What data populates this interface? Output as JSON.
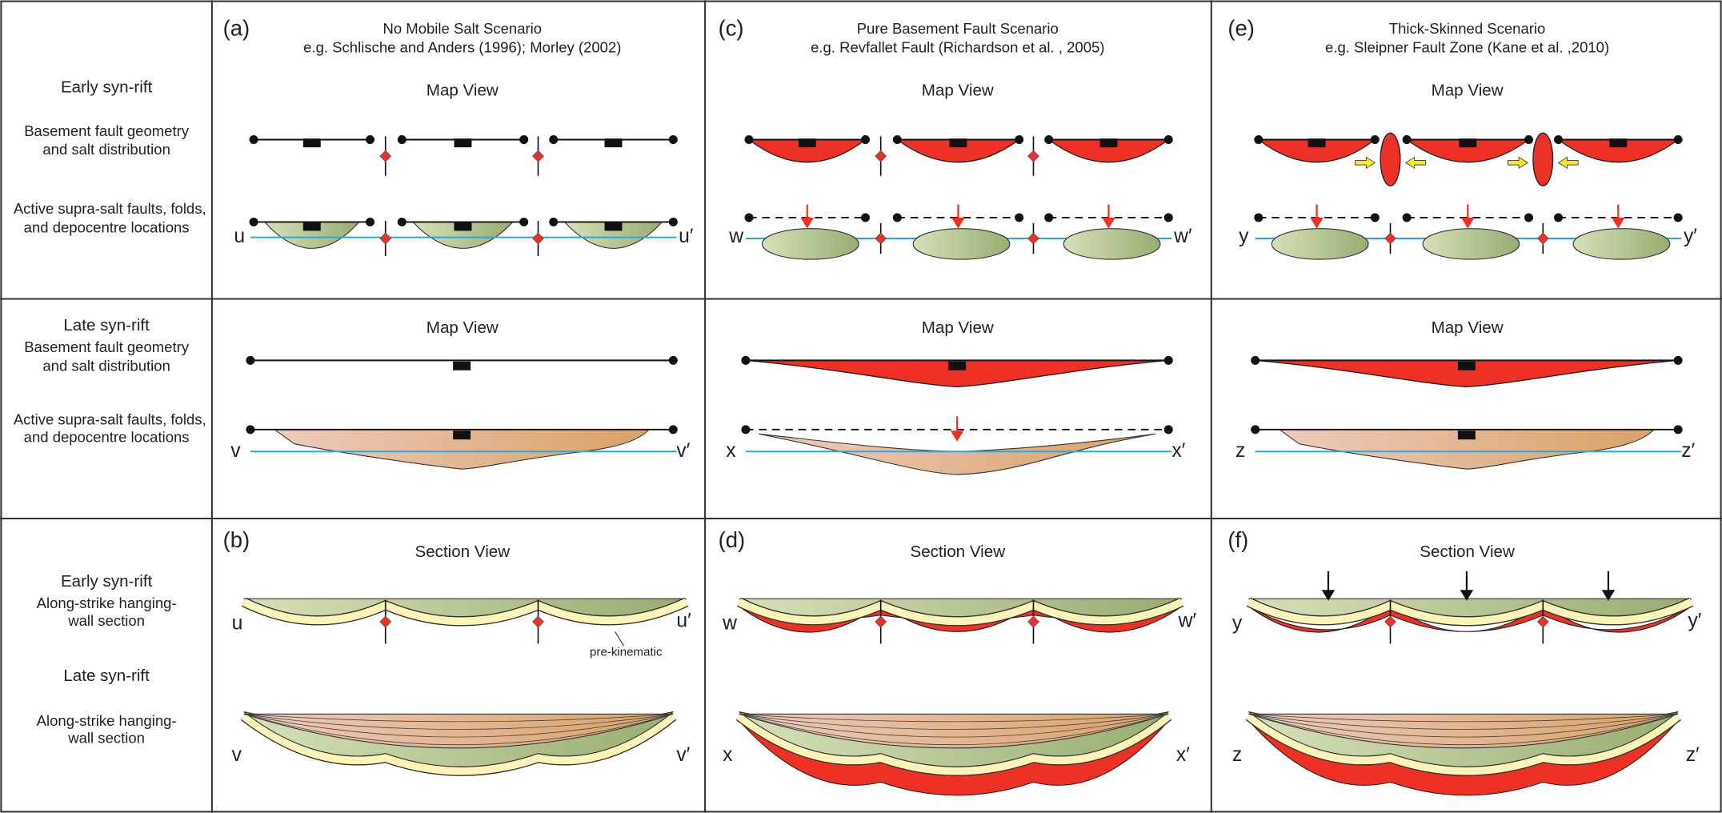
{
  "row_labels": {
    "early_map": {
      "stage": "Early syn-rift",
      "basement": [
        "Basement fault geometry",
        "and salt distribution"
      ],
      "supra": [
        "Active supra-salt faults, folds,",
        "and depocentre locations"
      ]
    },
    "late_map": {
      "stage": "Late syn-rift",
      "basement": [
        "Basement fault geometry",
        "and salt distribution"
      ],
      "supra": [
        "Active supra-salt faults, folds,",
        "and depocentre locations"
      ]
    },
    "section": {
      "early_stage": "Early syn-rift",
      "early_section": [
        "Along-strike hanging-",
        "wall section"
      ],
      "late_stage": "Late syn-rift",
      "late_section": [
        "Along-strike hanging-",
        "wall section"
      ]
    }
  },
  "columns": [
    {
      "map_label": "(a)",
      "title": "No Mobile Salt Scenario",
      "reference": "e.g. Schlische and Anders (1996); Morley (2002)",
      "early_map_heading": "Map View",
      "early_line": [
        "u",
        "u′"
      ],
      "late_map_heading": "Map View",
      "late_line": [
        "v",
        "v′"
      ],
      "section_label": "(b)",
      "section_heading": "Section View",
      "early_section_line": [
        "u",
        "u′"
      ],
      "late_section_line": [
        "v",
        "v′"
      ],
      "annotation": "pre-kinematic"
    },
    {
      "map_label": "(c)",
      "title": "Pure Basement Fault Scenario",
      "reference": "e.g. Revfallet Fault (Richardson et al. , 2005)",
      "early_map_heading": "Map View",
      "early_line": [
        "w",
        "w′"
      ],
      "late_map_heading": "Map View",
      "late_line": [
        "x",
        "x′"
      ],
      "section_label": "(d)",
      "section_heading": "Section View",
      "early_section_line": [
        "w",
        "w′"
      ],
      "late_section_line": [
        "x",
        "x′"
      ]
    },
    {
      "map_label": "(e)",
      "title": "Thick-Skinned Scenario",
      "reference": "e.g. Sleipner Fault Zone (Kane et al. ,2010)",
      "early_map_heading": "Map View",
      "early_line": [
        "y",
        "y′"
      ],
      "late_map_heading": "Map View",
      "late_line": [
        "z",
        "z′"
      ],
      "section_label": "(f)",
      "section_heading": "Section View",
      "early_section_line": [
        "y",
        "y′"
      ],
      "late_section_line": [
        "z",
        "z′"
      ]
    }
  ]
}
